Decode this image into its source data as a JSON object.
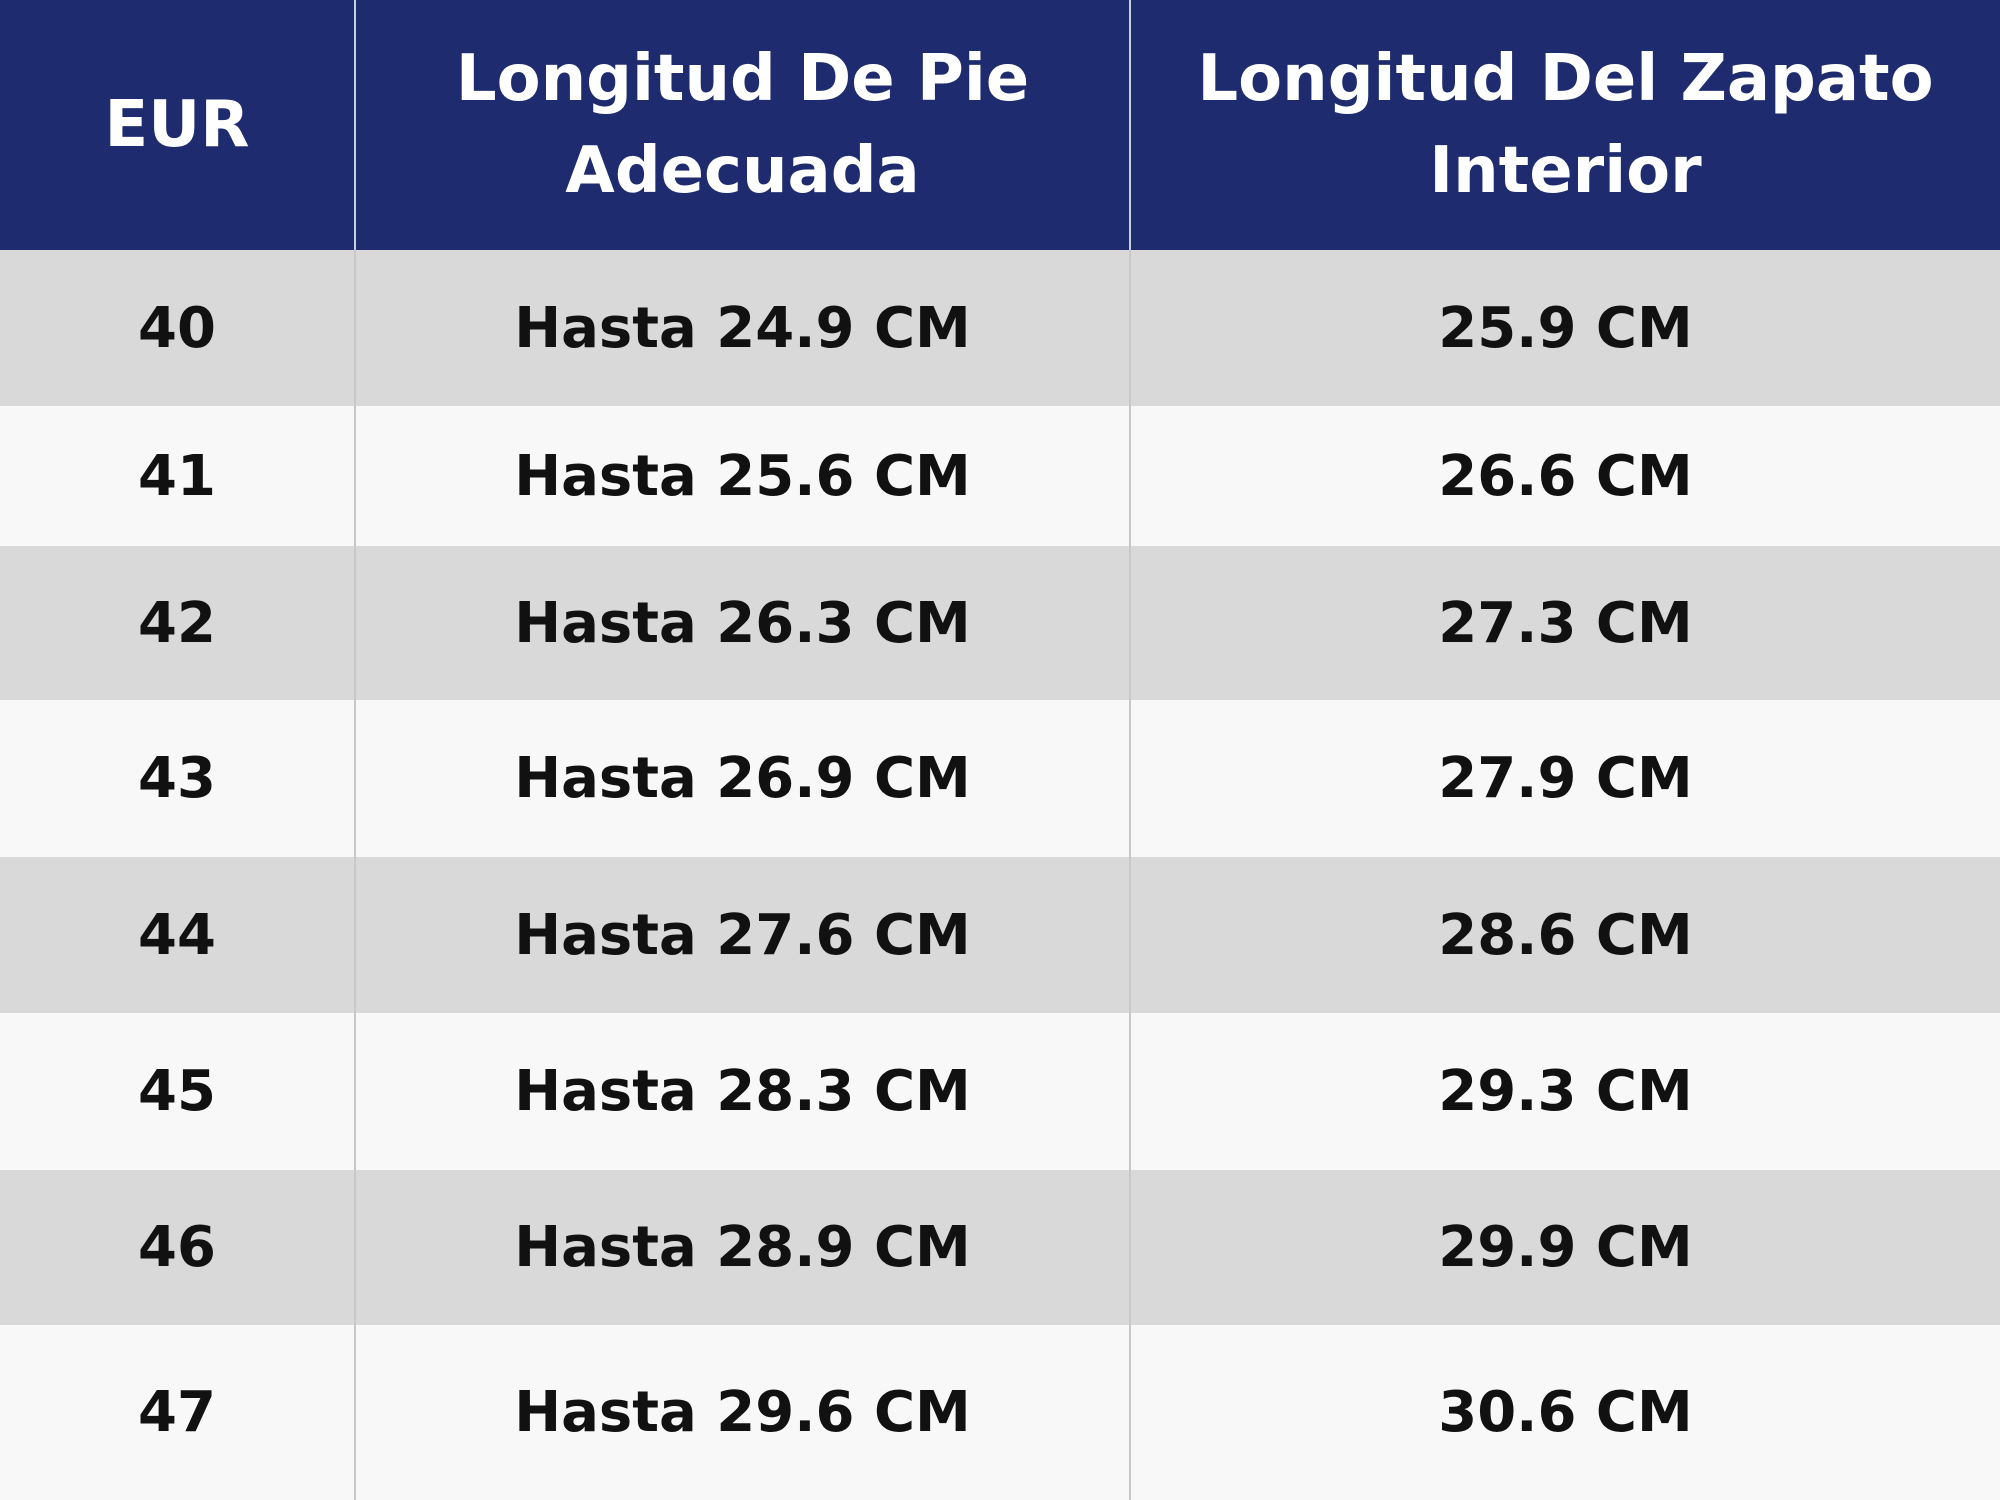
{
  "table": {
    "header": [
      "EUR",
      "Longitud De Pie Adecuada",
      "Longitud Del Zapato Interior"
    ],
    "rows": [
      [
        "40",
        "Hasta 24.9 CM",
        "25.9 CM"
      ],
      [
        "41",
        "Hasta 25.6 CM",
        "26.6 CM"
      ],
      [
        "42",
        "Hasta 26.3 CM",
        "27.3 CM"
      ],
      [
        "43",
        "Hasta 26.9 CM",
        "27.9 CM"
      ],
      [
        "44",
        "Hasta 27.6 CM",
        "28.6 CM"
      ],
      [
        "45",
        "Hasta 28.3 CM",
        "29.3 CM"
      ],
      [
        "46",
        "Hasta 28.9 CM",
        "29.9 CM"
      ],
      [
        "47",
        "Hasta 29.6 CM",
        "30.6 CM"
      ]
    ]
  }
}
